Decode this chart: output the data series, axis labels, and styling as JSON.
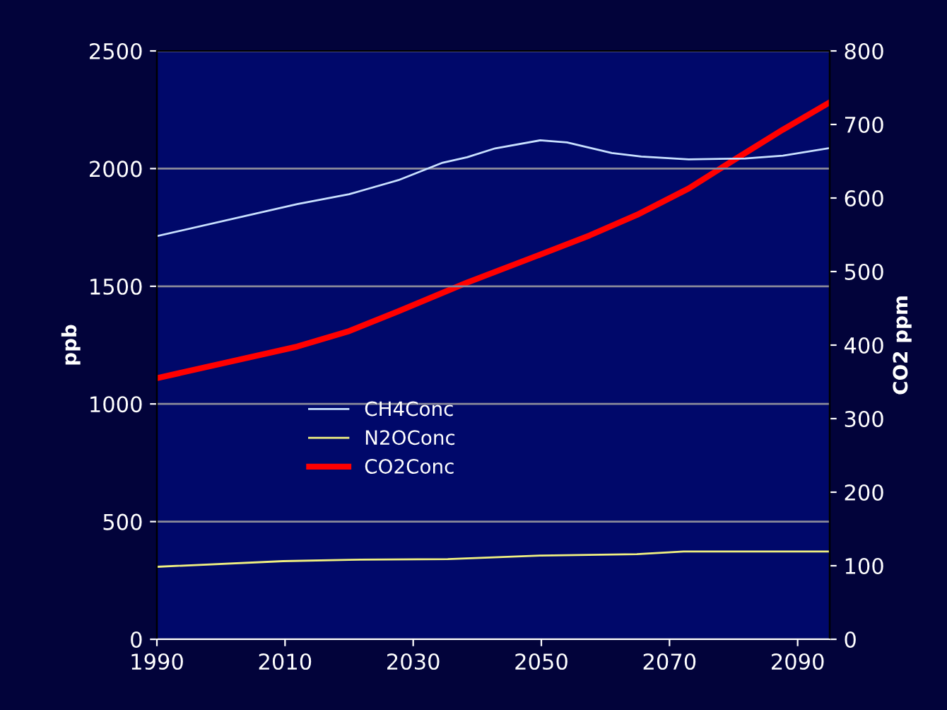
{
  "chart_data": {
    "type": "line",
    "ylabel": "ppb",
    "y2label": "CO2 ppm",
    "xlim": [
      1990,
      2095
    ],
    "xticks": [
      1990,
      2010,
      2030,
      2050,
      2070,
      2090
    ],
    "ylim": [
      0,
      2500
    ],
    "yticks": [
      0,
      500,
      1000,
      1500,
      2000,
      2500
    ],
    "y2lim": [
      0,
      800
    ],
    "y2ticks": [
      0,
      100,
      200,
      300,
      400,
      500,
      600,
      700,
      800
    ],
    "grid": "y",
    "legend": "center left",
    "marker": "none",
    "line_style": "solid",
    "series": [
      {
        "name": "CH4Conc",
        "color": "#c8e0ff",
        "x": [
          1990,
          2011.9,
          2020,
          2027.7,
          2034.6,
          2038.4,
          2042.8,
          2049.8,
          2054,
          2061,
          2065.6,
          2073,
          2081.8,
          2087.7,
          2095
        ],
        "values": [
          1713,
          1849,
          1891,
          1951,
          2025,
          2048,
          2086,
          2120,
          2111,
          2066,
          2051,
          2039,
          2043,
          2055,
          2087
        ]
      },
      {
        "name": "N2OConc",
        "color": "#f0f080",
        "x": [
          1990,
          2009.7,
          2020,
          2035.4,
          2050,
          2064.9,
          2072.2,
          2095
        ],
        "values": [
          308,
          332,
          338,
          341,
          356,
          362,
          373,
          373
        ]
      },
      {
        "name": "CO2Conc",
        "color": "#ff0000",
        "axis": "y2",
        "x": [
          1990,
          2011.9,
          2020,
          2027.7,
          2038.4,
          2049.8,
          2057.5,
          2064.9,
          2073,
          2080.3,
          2087.7,
          2095
        ],
        "values": [
          355,
          398,
          419,
          446,
          485,
          523,
          549,
          577,
          613,
          653,
          693,
          730
        ]
      }
    ]
  }
}
